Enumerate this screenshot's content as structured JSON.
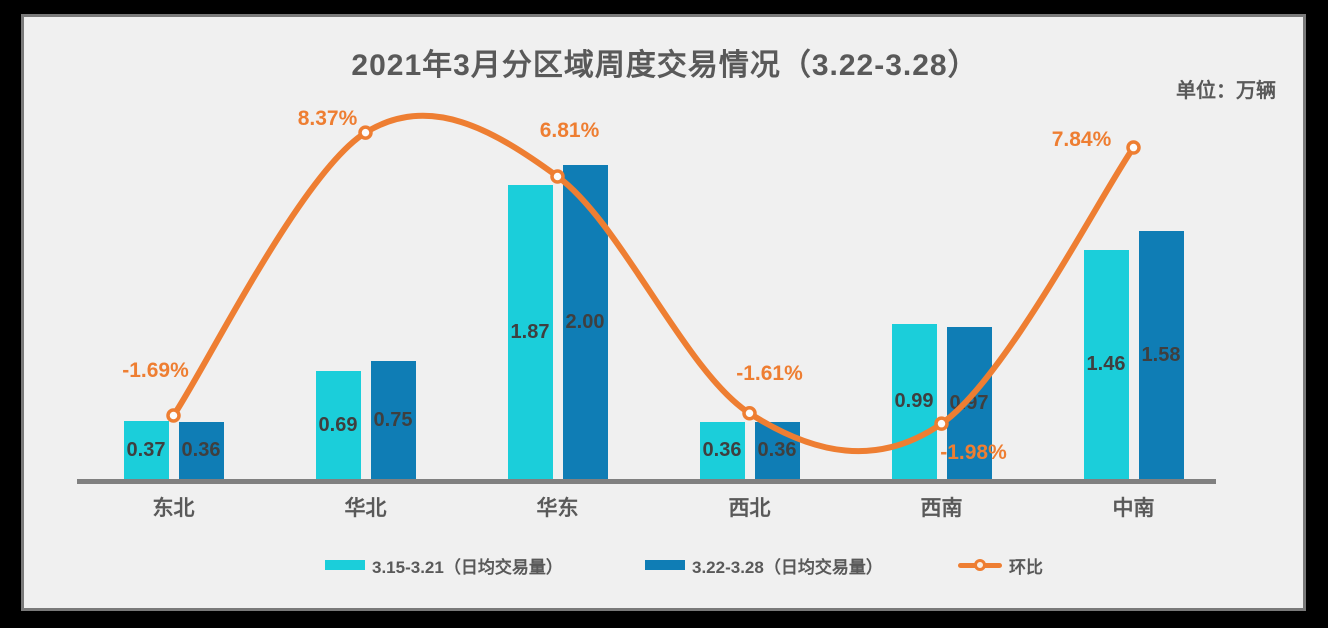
{
  "title": "2021年3月分区域周度交易情况（3.22-3.28）",
  "unit_label": "单位：万辆",
  "colors": {
    "series1": "#1BCEDA",
    "series2": "#0F7DB5",
    "line": "#EE7E32",
    "background": "#F0F0F0",
    "outer_frame": "#000000",
    "panel_border": "#7A7A7A",
    "axis": "#808080",
    "title_text": "#595959",
    "bar_value_text": "#3F3F3F"
  },
  "legend": [
    {
      "label": "3.15-3.21（日均交易量）",
      "type": "bar-swatch",
      "color": "#1BCEDA"
    },
    {
      "label": "3.22-3.28（日均交易量）",
      "type": "bar-swatch",
      "color": "#0F7DB5"
    },
    {
      "label": "环比",
      "type": "line-swatch",
      "color": "#EE7E32"
    }
  ],
  "chart_data": {
    "type": "bar",
    "subtype": "grouped bars with smooth line overlay on secondary percent axis",
    "title": "2021年3月分区域周度交易情况（3.22-3.28）",
    "unit": "万辆",
    "categories": [
      "东北",
      "华北",
      "华东",
      "西北",
      "西南",
      "中南"
    ],
    "series": [
      {
        "name": "3.15-3.21（日均交易量）",
        "type": "bar",
        "values": [
          0.37,
          0.69,
          1.87,
          0.36,
          0.99,
          1.46
        ],
        "labels": [
          "0.37",
          "0.69",
          "1.87",
          "0.36",
          "0.99",
          "1.46"
        ]
      },
      {
        "name": "3.22-3.28（日均交易量）",
        "type": "bar",
        "values": [
          0.36,
          0.75,
          2.0,
          0.36,
          0.97,
          1.58
        ],
        "labels": [
          "0.36",
          "0.75",
          "2.00",
          "0.36",
          "0.97",
          "1.58"
        ]
      },
      {
        "name": "环比",
        "type": "line",
        "values_pct": [
          -1.69,
          8.37,
          6.81,
          -1.61,
          -1.98,
          7.84
        ],
        "labels": [
          "-1.69%",
          "8.37%",
          "6.81%",
          "-1.61%",
          "-1.98%",
          "7.84%"
        ]
      }
    ],
    "axes": {
      "y_primary": "hidden",
      "y_secondary": "hidden",
      "grid": false
    },
    "legend_position": "bottom"
  }
}
